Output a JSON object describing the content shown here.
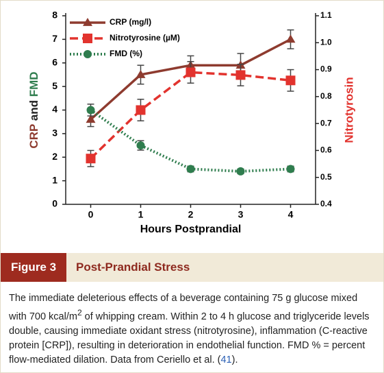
{
  "chart_data": {
    "type": "line",
    "xlabel": "Hours Postprandial",
    "ylabel": [
      "CRP",
      "and",
      "FMD"
    ],
    "y2label": "Nitrotyrosin",
    "x": [
      0,
      1,
      2,
      3,
      4
    ],
    "xlim": [
      -0.5,
      4.5
    ],
    "xticks": [
      0,
      1,
      2,
      3,
      4
    ],
    "ylim": [
      0,
      8
    ],
    "yticks": [
      0,
      1,
      2,
      3,
      4,
      5,
      6,
      7,
      8
    ],
    "y2lim": [
      0.4,
      1.1
    ],
    "y2ticks": [
      0.4,
      0.5,
      0.6,
      0.7,
      0.8,
      0.9,
      {
        "value": 1.0,
        "label": "1.0"
      },
      1.1
    ],
    "legend": "upper left",
    "series": [
      {
        "name": "CRP (mg/l)",
        "color": "#8e3b2f",
        "marker": "triangle",
        "dash": "solid",
        "values": [
          3.6,
          5.5,
          5.9,
          5.9,
          7.0
        ],
        "errors": [
          0.3,
          0.4,
          0.4,
          0.5,
          0.4
        ]
      },
      {
        "name": "Nitrotyrosine (µM)",
        "color": "#e2332e",
        "marker": "square",
        "dash": "dashed",
        "axis": "y2",
        "values": [
          0.57,
          0.75,
          0.89,
          0.88,
          0.86
        ],
        "errors": [
          0.03,
          0.04,
          0.04,
          0.04,
          0.04
        ]
      },
      {
        "name": "FMD (%)",
        "color": "#2f7d4e",
        "marker": "circle",
        "dash": "dotted",
        "values": [
          4.0,
          2.5,
          1.5,
          1.4,
          1.5
        ],
        "errors": [
          0.25,
          0.2,
          0.12,
          0.1,
          0.12
        ]
      }
    ]
  },
  "figure": {
    "label": "Figure 3",
    "title": "Post-Prandial Stress",
    "caption": [
      "The immediate deleterious effects of a beverage containing 75 g glucose mixed with 700 kcal/m",
      "2",
      " of whipping cream. Within 2 to 4 h glucose and triglyceride levels double, causing immediate oxidant stress (nitrotyrosine), inflammation (C-reactive protein [CRP]), resulting in deterioration in endothelial function. FMD % = percent flow-mediated dilation. Data from Ceriello et al. (",
      "41",
      ")."
    ]
  }
}
